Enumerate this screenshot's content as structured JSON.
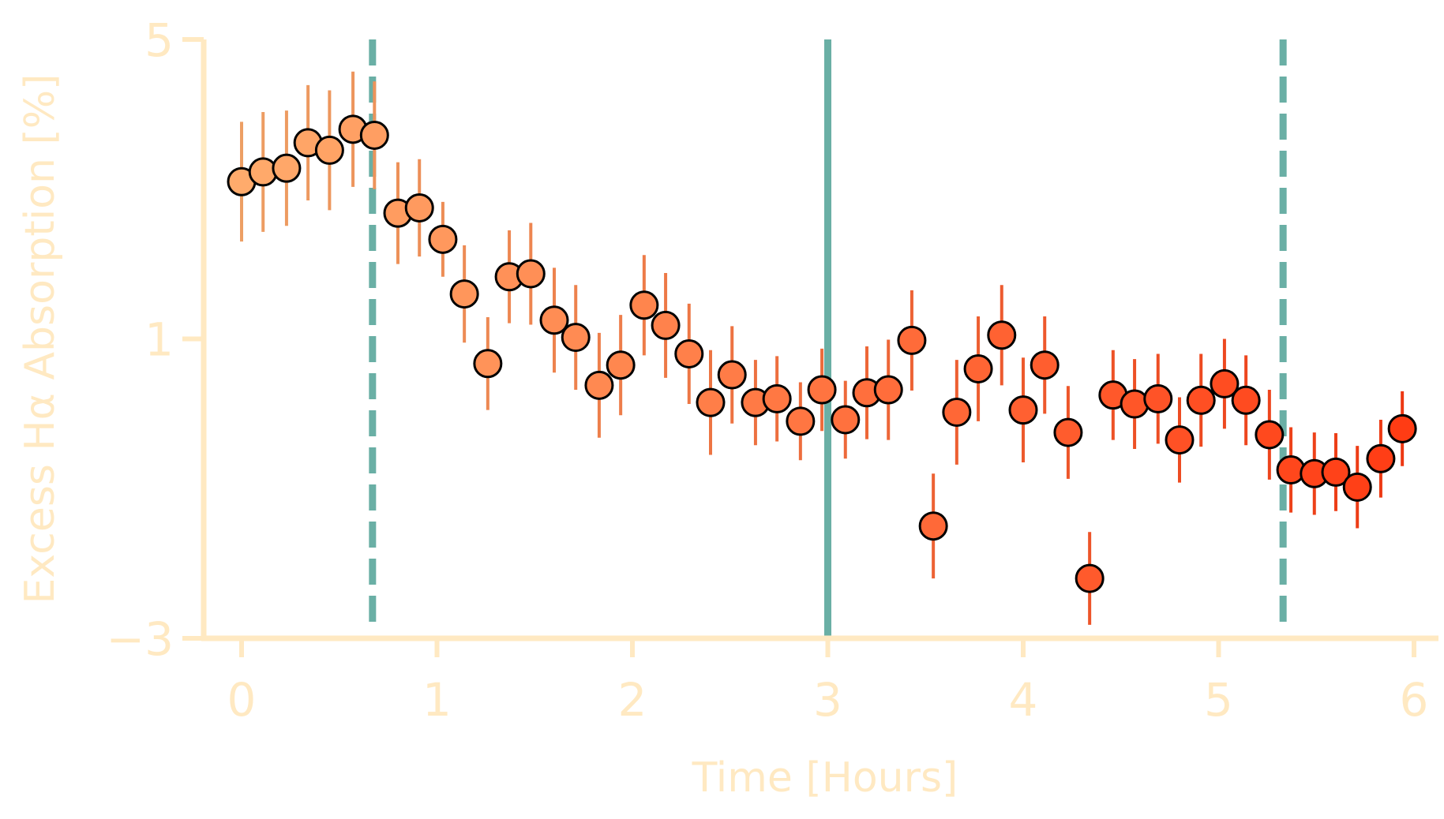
{
  "chart_data": {
    "type": "scatter",
    "title": "",
    "xlabel": "Time [Hours]",
    "ylabel": "Excess Hα Absorption [%]",
    "xlim": [
      -0.2,
      6.12
    ],
    "ylim": [
      -3,
      5
    ],
    "x_ticks": [
      "0",
      "1",
      "2",
      "3",
      "4",
      "5",
      "6"
    ],
    "y_ticks": [
      "−3",
      "1",
      "5"
    ],
    "grid": false,
    "legend": "none",
    "axis_color": "#ffe9c2",
    "vertical_lines": [
      {
        "x": 0.67,
        "style": "dashed",
        "color": "#6aafa5"
      },
      {
        "x": 3.0,
        "style": "solid",
        "color": "#6aafa5"
      },
      {
        "x": 5.33,
        "style": "dashed",
        "color": "#6aafa5"
      }
    ],
    "color_start": "#ffab6c",
    "color_end": "#ff3c14",
    "points": [
      {
        "x": 0.0,
        "y": 3.1,
        "err": 0.8
      },
      {
        "x": 0.11,
        "y": 3.23,
        "err": 0.8
      },
      {
        "x": 0.23,
        "y": 3.28,
        "err": 0.77
      },
      {
        "x": 0.34,
        "y": 3.62,
        "err": 0.77
      },
      {
        "x": 0.45,
        "y": 3.52,
        "err": 0.8
      },
      {
        "x": 0.57,
        "y": 3.8,
        "err": 0.77
      },
      {
        "x": 0.68,
        "y": 3.72,
        "err": 0.72
      },
      {
        "x": 0.8,
        "y": 2.68,
        "err": 0.68
      },
      {
        "x": 0.91,
        "y": 2.75,
        "err": 0.65
      },
      {
        "x": 1.03,
        "y": 2.33,
        "err": 0.5
      },
      {
        "x": 1.14,
        "y": 1.6,
        "err": 0.65
      },
      {
        "x": 1.26,
        "y": 0.67,
        "err": 0.62
      },
      {
        "x": 1.37,
        "y": 1.83,
        "err": 0.62
      },
      {
        "x": 1.48,
        "y": 1.87,
        "err": 0.68
      },
      {
        "x": 1.6,
        "y": 1.25,
        "err": 0.7
      },
      {
        "x": 1.71,
        "y": 1.02,
        "err": 0.7
      },
      {
        "x": 1.83,
        "y": 0.38,
        "err": 0.7
      },
      {
        "x": 1.94,
        "y": 0.65,
        "err": 0.67
      },
      {
        "x": 2.06,
        "y": 1.45,
        "err": 0.67
      },
      {
        "x": 2.17,
        "y": 1.18,
        "err": 0.7
      },
      {
        "x": 2.29,
        "y": 0.8,
        "err": 0.67
      },
      {
        "x": 2.4,
        "y": 0.15,
        "err": 0.7
      },
      {
        "x": 2.51,
        "y": 0.52,
        "err": 0.65
      },
      {
        "x": 2.63,
        "y": 0.15,
        "err": 0.57
      },
      {
        "x": 2.74,
        "y": 0.2,
        "err": 0.57
      },
      {
        "x": 2.86,
        "y": -0.1,
        "err": 0.52
      },
      {
        "x": 2.97,
        "y": 0.32,
        "err": 0.55
      },
      {
        "x": 3.09,
        "y": -0.08,
        "err": 0.52
      },
      {
        "x": 3.2,
        "y": 0.28,
        "err": 0.62
      },
      {
        "x": 3.31,
        "y": 0.32,
        "err": 0.67
      },
      {
        "x": 3.43,
        "y": 0.98,
        "err": 0.67
      },
      {
        "x": 3.54,
        "y": -1.5,
        "err": 0.7
      },
      {
        "x": 3.66,
        "y": 0.02,
        "err": 0.7
      },
      {
        "x": 3.77,
        "y": 0.6,
        "err": 0.7
      },
      {
        "x": 3.89,
        "y": 1.05,
        "err": 0.67
      },
      {
        "x": 4.0,
        "y": 0.05,
        "err": 0.7
      },
      {
        "x": 4.11,
        "y": 0.65,
        "err": 0.65
      },
      {
        "x": 4.23,
        "y": -0.25,
        "err": 0.62
      },
      {
        "x": 4.34,
        "y": -2.2,
        "err": 0.62
      },
      {
        "x": 4.46,
        "y": 0.25,
        "err": 0.6
      },
      {
        "x": 4.57,
        "y": 0.13,
        "err": 0.6
      },
      {
        "x": 4.69,
        "y": 0.2,
        "err": 0.6
      },
      {
        "x": 4.8,
        "y": -0.35,
        "err": 0.57
      },
      {
        "x": 4.91,
        "y": 0.18,
        "err": 0.62
      },
      {
        "x": 5.03,
        "y": 0.4,
        "err": 0.6
      },
      {
        "x": 5.14,
        "y": 0.18,
        "err": 0.6
      },
      {
        "x": 5.26,
        "y": -0.28,
        "err": 0.6
      },
      {
        "x": 5.37,
        "y": -0.75,
        "err": 0.57
      },
      {
        "x": 5.49,
        "y": -0.8,
        "err": 0.55
      },
      {
        "x": 5.6,
        "y": -0.78,
        "err": 0.52
      },
      {
        "x": 5.71,
        "y": -0.98,
        "err": 0.55
      },
      {
        "x": 5.83,
        "y": -0.6,
        "err": 0.52
      },
      {
        "x": 5.94,
        "y": -0.2,
        "err": 0.5
      }
    ]
  }
}
